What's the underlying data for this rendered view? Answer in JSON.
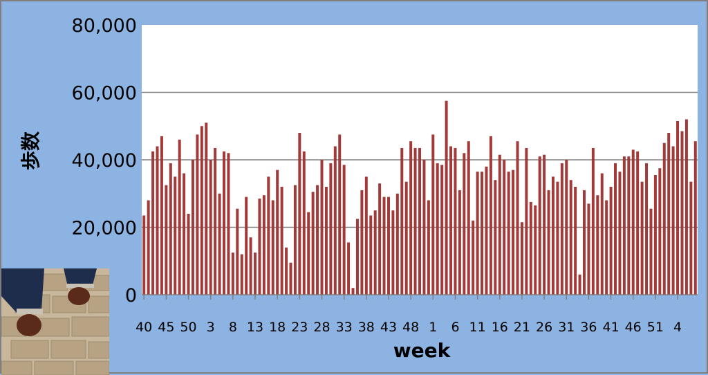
{
  "chart_data": {
    "type": "bar",
    "xlabel": "week",
    "ylabel": "歩数",
    "ylim": [
      0,
      80000
    ],
    "yticks": [
      "0",
      "20,000",
      "40,000",
      "60,000",
      "80,000"
    ],
    "grid": true,
    "bar_color": "#a33a3a",
    "plot_background": "#ffffff",
    "outer_background": "#8db3e2",
    "x_tick_labels": [
      "40",
      "45",
      "50",
      "3",
      "8",
      "13",
      "18",
      "23",
      "28",
      "33",
      "38",
      "43",
      "48",
      "1",
      "6",
      "11",
      "16",
      "21",
      "26",
      "31",
      "36",
      "41",
      "46",
      "51",
      "4"
    ],
    "weeks": [
      40,
      41,
      42,
      43,
      44,
      45,
      46,
      47,
      48,
      49,
      50,
      51,
      52,
      1,
      2,
      3,
      4,
      5,
      6,
      7,
      8,
      9,
      10,
      11,
      12,
      13,
      14,
      15,
      16,
      17,
      18,
      19,
      20,
      21,
      22,
      23,
      24,
      25,
      26,
      27,
      28,
      29,
      30,
      31,
      32,
      33,
      34,
      35,
      36,
      37,
      38,
      39,
      40,
      41,
      42,
      43,
      44,
      45,
      46,
      47,
      48,
      49,
      50,
      51,
      52,
      1,
      2,
      3,
      4,
      5,
      6,
      7,
      8,
      9,
      10,
      11,
      12,
      13,
      14,
      15,
      16,
      17,
      18,
      19,
      20,
      21,
      22,
      23,
      24,
      25,
      26,
      27,
      28,
      29,
      30,
      31,
      32,
      33,
      34,
      35,
      36,
      37,
      38,
      39,
      40,
      41,
      42,
      43,
      44,
      45,
      46,
      47,
      48,
      49,
      50,
      51,
      52,
      1,
      2,
      3,
      4,
      5,
      6,
      7,
      8
    ],
    "values": [
      23500,
      28000,
      42500,
      44000,
      47000,
      32500,
      39000,
      35000,
      46000,
      36000,
      24000,
      40000,
      47500,
      50000,
      51000,
      40000,
      43500,
      30000,
      42500,
      42000,
      12500,
      25500,
      12000,
      29000,
      17000,
      12500,
      28500,
      29500,
      35000,
      28000,
      37000,
      32000,
      14000,
      9500,
      32500,
      48000,
      42500,
      24500,
      30500,
      32500,
      40000,
      32000,
      39000,
      44000,
      47500,
      38500,
      15500,
      2000,
      22500,
      31000,
      35000,
      23500,
      25000,
      33000,
      29000,
      29000,
      25000,
      30000,
      43500,
      33500,
      45500,
      43500,
      43500,
      40000,
      28000,
      47500,
      39000,
      38500,
      57500,
      44000,
      43500,
      31000,
      42000,
      45500,
      22000,
      36500,
      36500,
      38000,
      47000,
      34000,
      41500,
      40000,
      36500,
      37000,
      45500,
      21500,
      43500,
      27500,
      26500,
      41000,
      41500,
      31000,
      35000,
      33500,
      39000,
      40000,
      34000,
      32000,
      6000,
      31000,
      27000,
      43500,
      29500,
      36000,
      28000,
      32000,
      39000,
      36500,
      41000,
      41000,
      43000,
      42500,
      33500,
      39000,
      25500,
      35500,
      37500,
      45000,
      48000,
      44000,
      51500,
      48500,
      52000,
      33500,
      45500
    ]
  }
}
